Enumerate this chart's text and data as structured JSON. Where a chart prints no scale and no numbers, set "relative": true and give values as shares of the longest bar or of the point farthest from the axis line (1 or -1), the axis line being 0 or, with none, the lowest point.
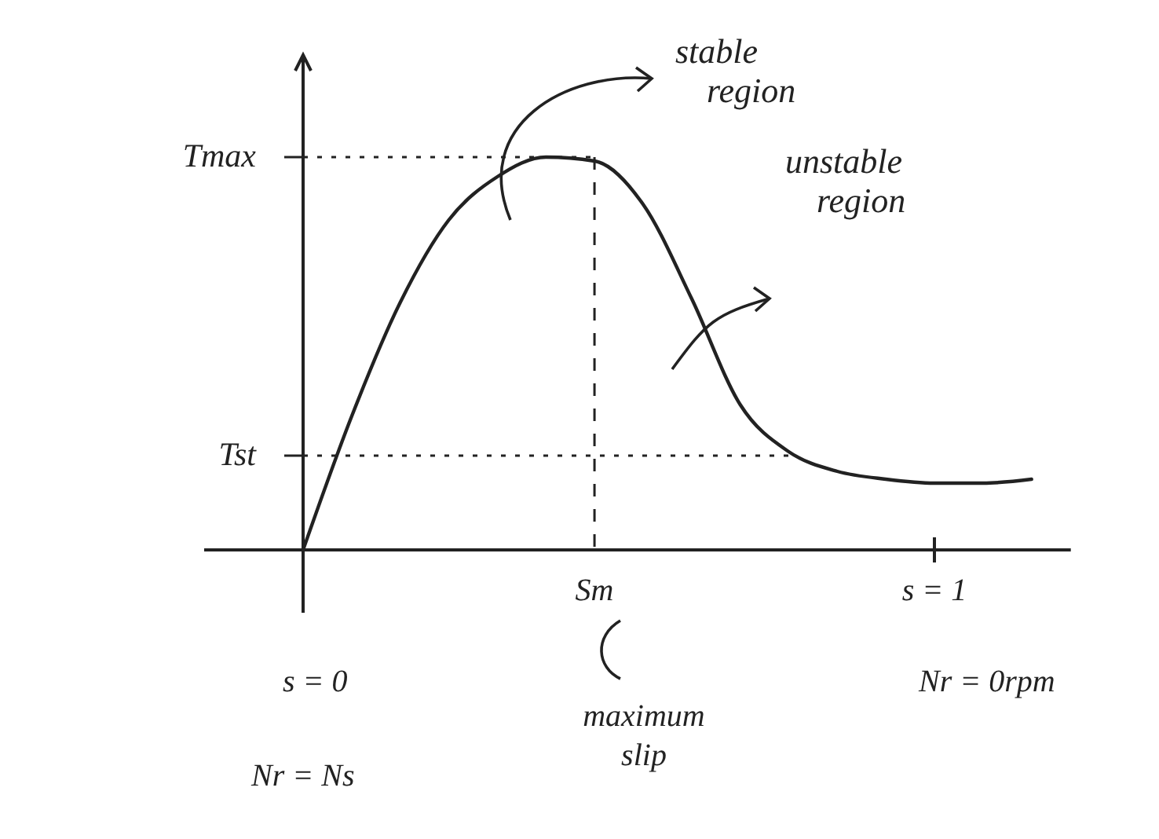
{
  "chart_data": {
    "type": "line",
    "relative": true,
    "categories": [
      null,
      null,
      null,
      null,
      null,
      null,
      "Sm",
      null,
      null,
      null,
      null,
      null,
      null,
      "s = 1",
      null,
      null
    ],
    "series": [
      {
        "color": "#222222",
        "values": [
          0,
          0.34,
          0.63,
          0.84,
          0.95,
          1,
          0.99,
          0.88,
          0.64,
          0.37,
          0.25,
          0.2,
          0.18,
          0.17,
          0.17,
          0.18
        ]
      }
    ],
    "ref_lines": [
      {
        "axis": "y",
        "value": 1,
        "label": "Tmax",
        "line_style": "dotted"
      },
      {
        "axis": "y",
        "value": 0.24,
        "label": "Tst",
        "line_style": "dotted"
      },
      {
        "axis": "x",
        "value": "Sm",
        "label": null,
        "line_style": "dashed"
      }
    ],
    "annotations": [
      "stable region",
      "unstable region",
      "s = 0",
      "Nr = Ns",
      "maximum slip",
      "Nr = 0rpm"
    ],
    "line_style": "solid",
    "marker": "none"
  }
}
